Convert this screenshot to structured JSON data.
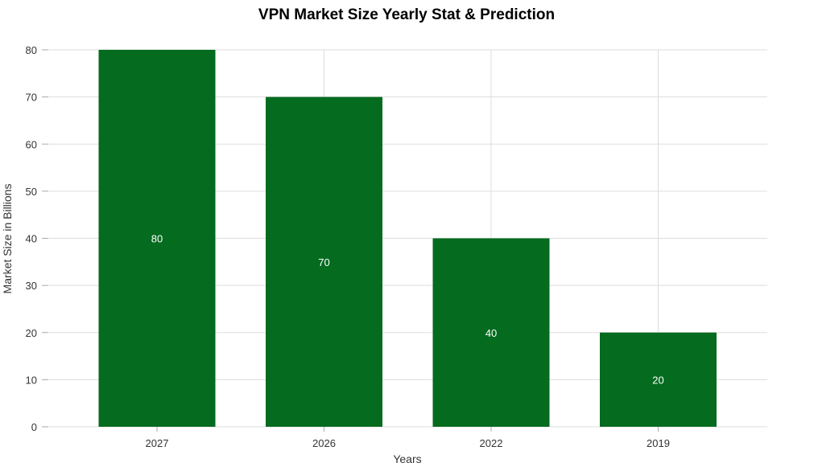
{
  "chart_data": {
    "type": "bar",
    "title": "VPN Market Size Yearly Stat & Prediction",
    "xlabel": "Years",
    "ylabel": "Market Size in Billions",
    "categories": [
      "2027",
      "2026",
      "2022",
      "2019"
    ],
    "values": [
      80,
      70,
      40,
      20
    ],
    "data_labels": [
      "80",
      "70",
      "40",
      "20"
    ],
    "ylim": [
      0,
      80
    ],
    "yticks": [
      0,
      10,
      20,
      30,
      40,
      50,
      60,
      70,
      80
    ],
    "ytick_labels": [
      "0",
      "10",
      "20",
      "30",
      "40",
      "50",
      "60",
      "70",
      "80"
    ],
    "grid": true,
    "bar_color": "#046b1f"
  }
}
